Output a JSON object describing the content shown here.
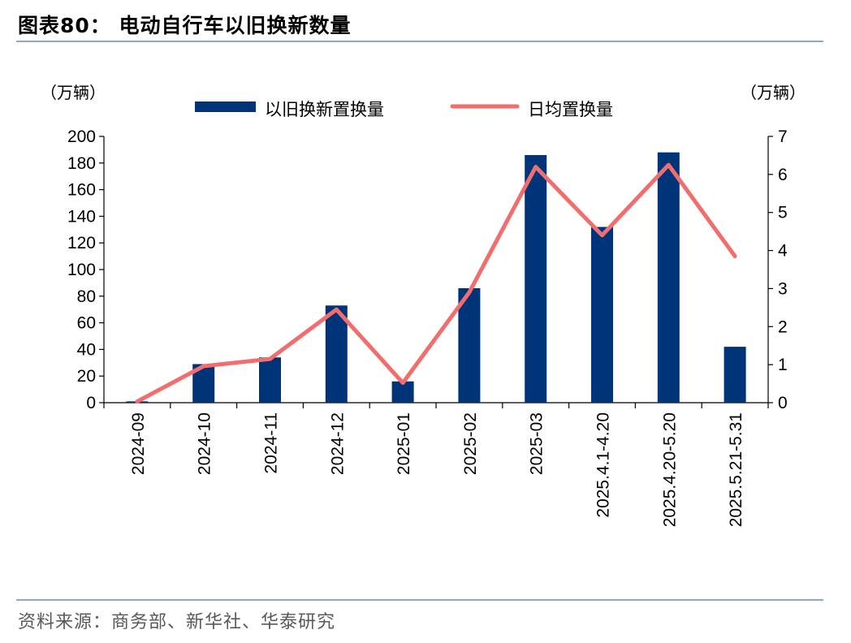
{
  "figure": {
    "title": "图表80：  电动自行车以旧换新数量",
    "source": "资料来源：商务部、新华社、华泰研究"
  },
  "colors": {
    "bar": "#003478",
    "line": "#f26d6d",
    "rule": "#8ea9c6"
  },
  "chart_data": {
    "type": "bar+line",
    "categories": [
      "2024-09",
      "2024-10",
      "2024-11",
      "2024-12",
      "2025-01",
      "2025-02",
      "2025-03",
      "2025.4.1-4.20",
      "2025.4.20-5.20",
      "2025.5.21-5.31"
    ],
    "series": [
      {
        "name": "以旧换新置换量",
        "type": "bar",
        "axis": "left",
        "values": [
          1,
          29,
          34,
          73,
          16,
          86,
          186,
          132,
          188,
          42
        ]
      },
      {
        "name": "日均置换量",
        "type": "line",
        "axis": "right",
        "values": [
          0.03,
          0.96,
          1.15,
          2.45,
          0.52,
          2.9,
          6.2,
          4.4,
          6.25,
          3.85
        ]
      }
    ],
    "y_left": {
      "unit": "（万辆）",
      "min": 0,
      "max": 200,
      "ticks": [
        "0",
        "20",
        "40",
        "60",
        "80",
        "100",
        "120",
        "140",
        "160",
        "180",
        "200"
      ]
    },
    "y_right": {
      "unit": "（万辆）",
      "min": 0,
      "max": 7,
      "ticks": [
        "0",
        "1",
        "2",
        "3",
        "4",
        "5",
        "6",
        "7"
      ]
    },
    "legend": {
      "position": "top-center"
    },
    "grid": false
  }
}
